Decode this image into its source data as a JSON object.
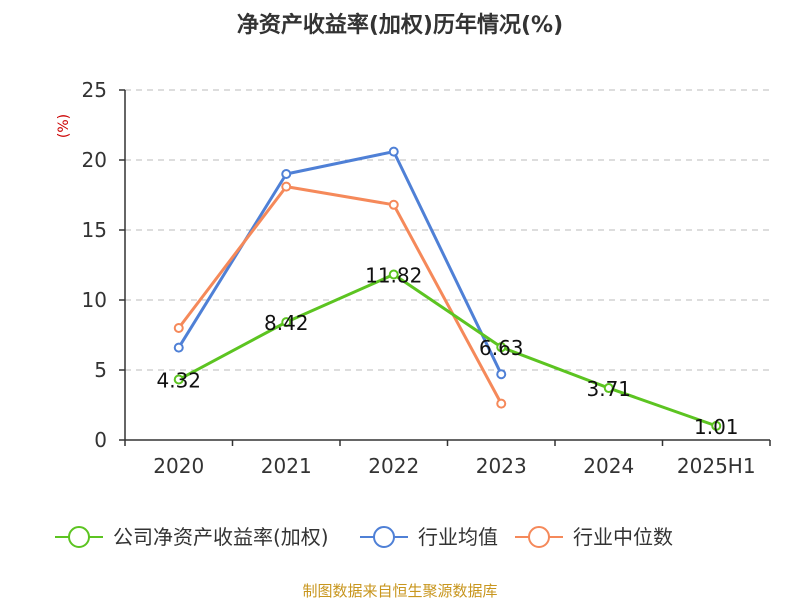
{
  "source_text": "制图数据来自恒生聚源数据库",
  "colors": {
    "axis": "#333333",
    "grid": "#bbbbbb",
    "ylabel": "#cc0000",
    "source": "#c8961e"
  },
  "chart_data": {
    "type": "line",
    "title": "净资产收益率(加权)历年情况(%)",
    "ylabel": "(%)",
    "xlabel": "",
    "categories": [
      "2020",
      "2021",
      "2022",
      "2023",
      "2024",
      "2025H1"
    ],
    "ylim": [
      0,
      25
    ],
    "yticks": [
      0,
      5,
      10,
      15,
      20,
      25
    ],
    "grid": "horizontal-dashed",
    "legend_position": "bottom",
    "series": [
      {
        "name": "公司净资产收益率(加权)",
        "color": "#5cc421",
        "values": [
          4.32,
          8.42,
          11.82,
          6.63,
          3.71,
          1.01
        ],
        "labels": [
          "4.32",
          "8.42",
          "11.82",
          "6.63",
          "3.71",
          "1.01"
        ],
        "marker": "circle-hollow"
      },
      {
        "name": "行业均值",
        "color": "#4f80d6",
        "values": [
          6.6,
          19.0,
          20.6,
          4.7,
          null,
          null
        ],
        "marker": "circle-hollow"
      },
      {
        "name": "行业中位数",
        "color": "#f5895a",
        "values": [
          8.0,
          18.1,
          16.8,
          2.6,
          null,
          null
        ],
        "marker": "circle-hollow"
      }
    ]
  }
}
